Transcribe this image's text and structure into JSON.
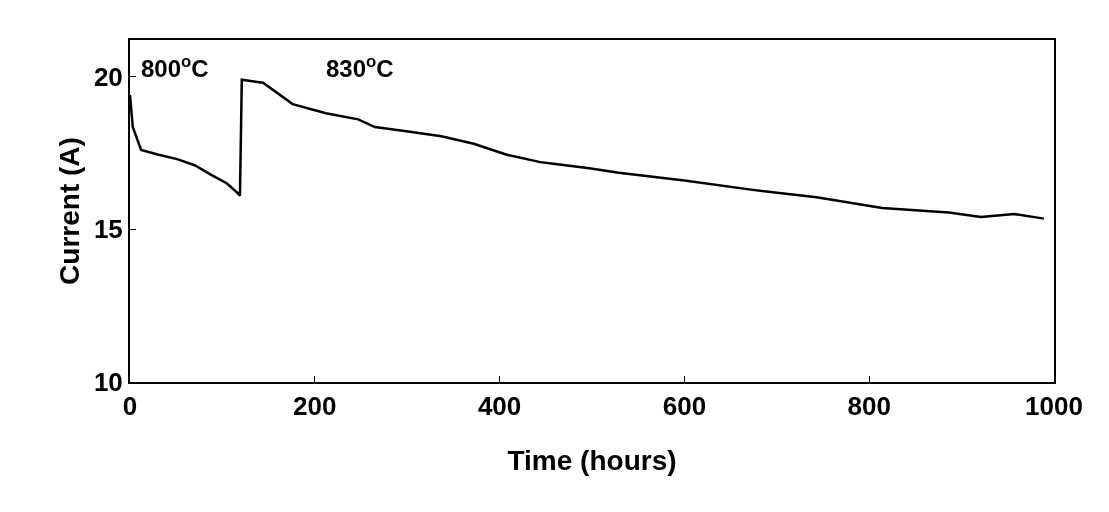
{
  "chart_data": {
    "type": "line",
    "xlabel": "Time (hours)",
    "ylabel": "Current (A)",
    "annotations": [
      "800$^{o}$C",
      "830$^{o}$C"
    ],
    "x": [
      0,
      3,
      12,
      30,
      51,
      70,
      87,
      105,
      116,
      119,
      121,
      144,
      176,
      212,
      247,
      265,
      301,
      337,
      372,
      407,
      444,
      458,
      497,
      529,
      600,
      672,
      743,
      814,
      886,
      921,
      957,
      989
    ],
    "series": [
      {
        "color": "#000000",
        "values": [
          19.4,
          18.35,
          17.6,
          17.45,
          17.3,
          17.1,
          16.8,
          16.5,
          16.2,
          16.1,
          19.9,
          19.8,
          19.1,
          18.8,
          18.6,
          18.35,
          18.2,
          18.05,
          17.8,
          17.45,
          17.2,
          17.15,
          17.0,
          16.85,
          16.6,
          16.3,
          16.05,
          15.7,
          15.55,
          15.4,
          15.5,
          15.35
        ]
      }
    ],
    "xlim": [
      0,
      1000
    ],
    "ylim": [
      10,
      21.2
    ],
    "xticks": [
      0,
      200,
      400,
      600,
      800,
      1000
    ],
    "yticks": [
      10,
      15,
      20
    ]
  }
}
